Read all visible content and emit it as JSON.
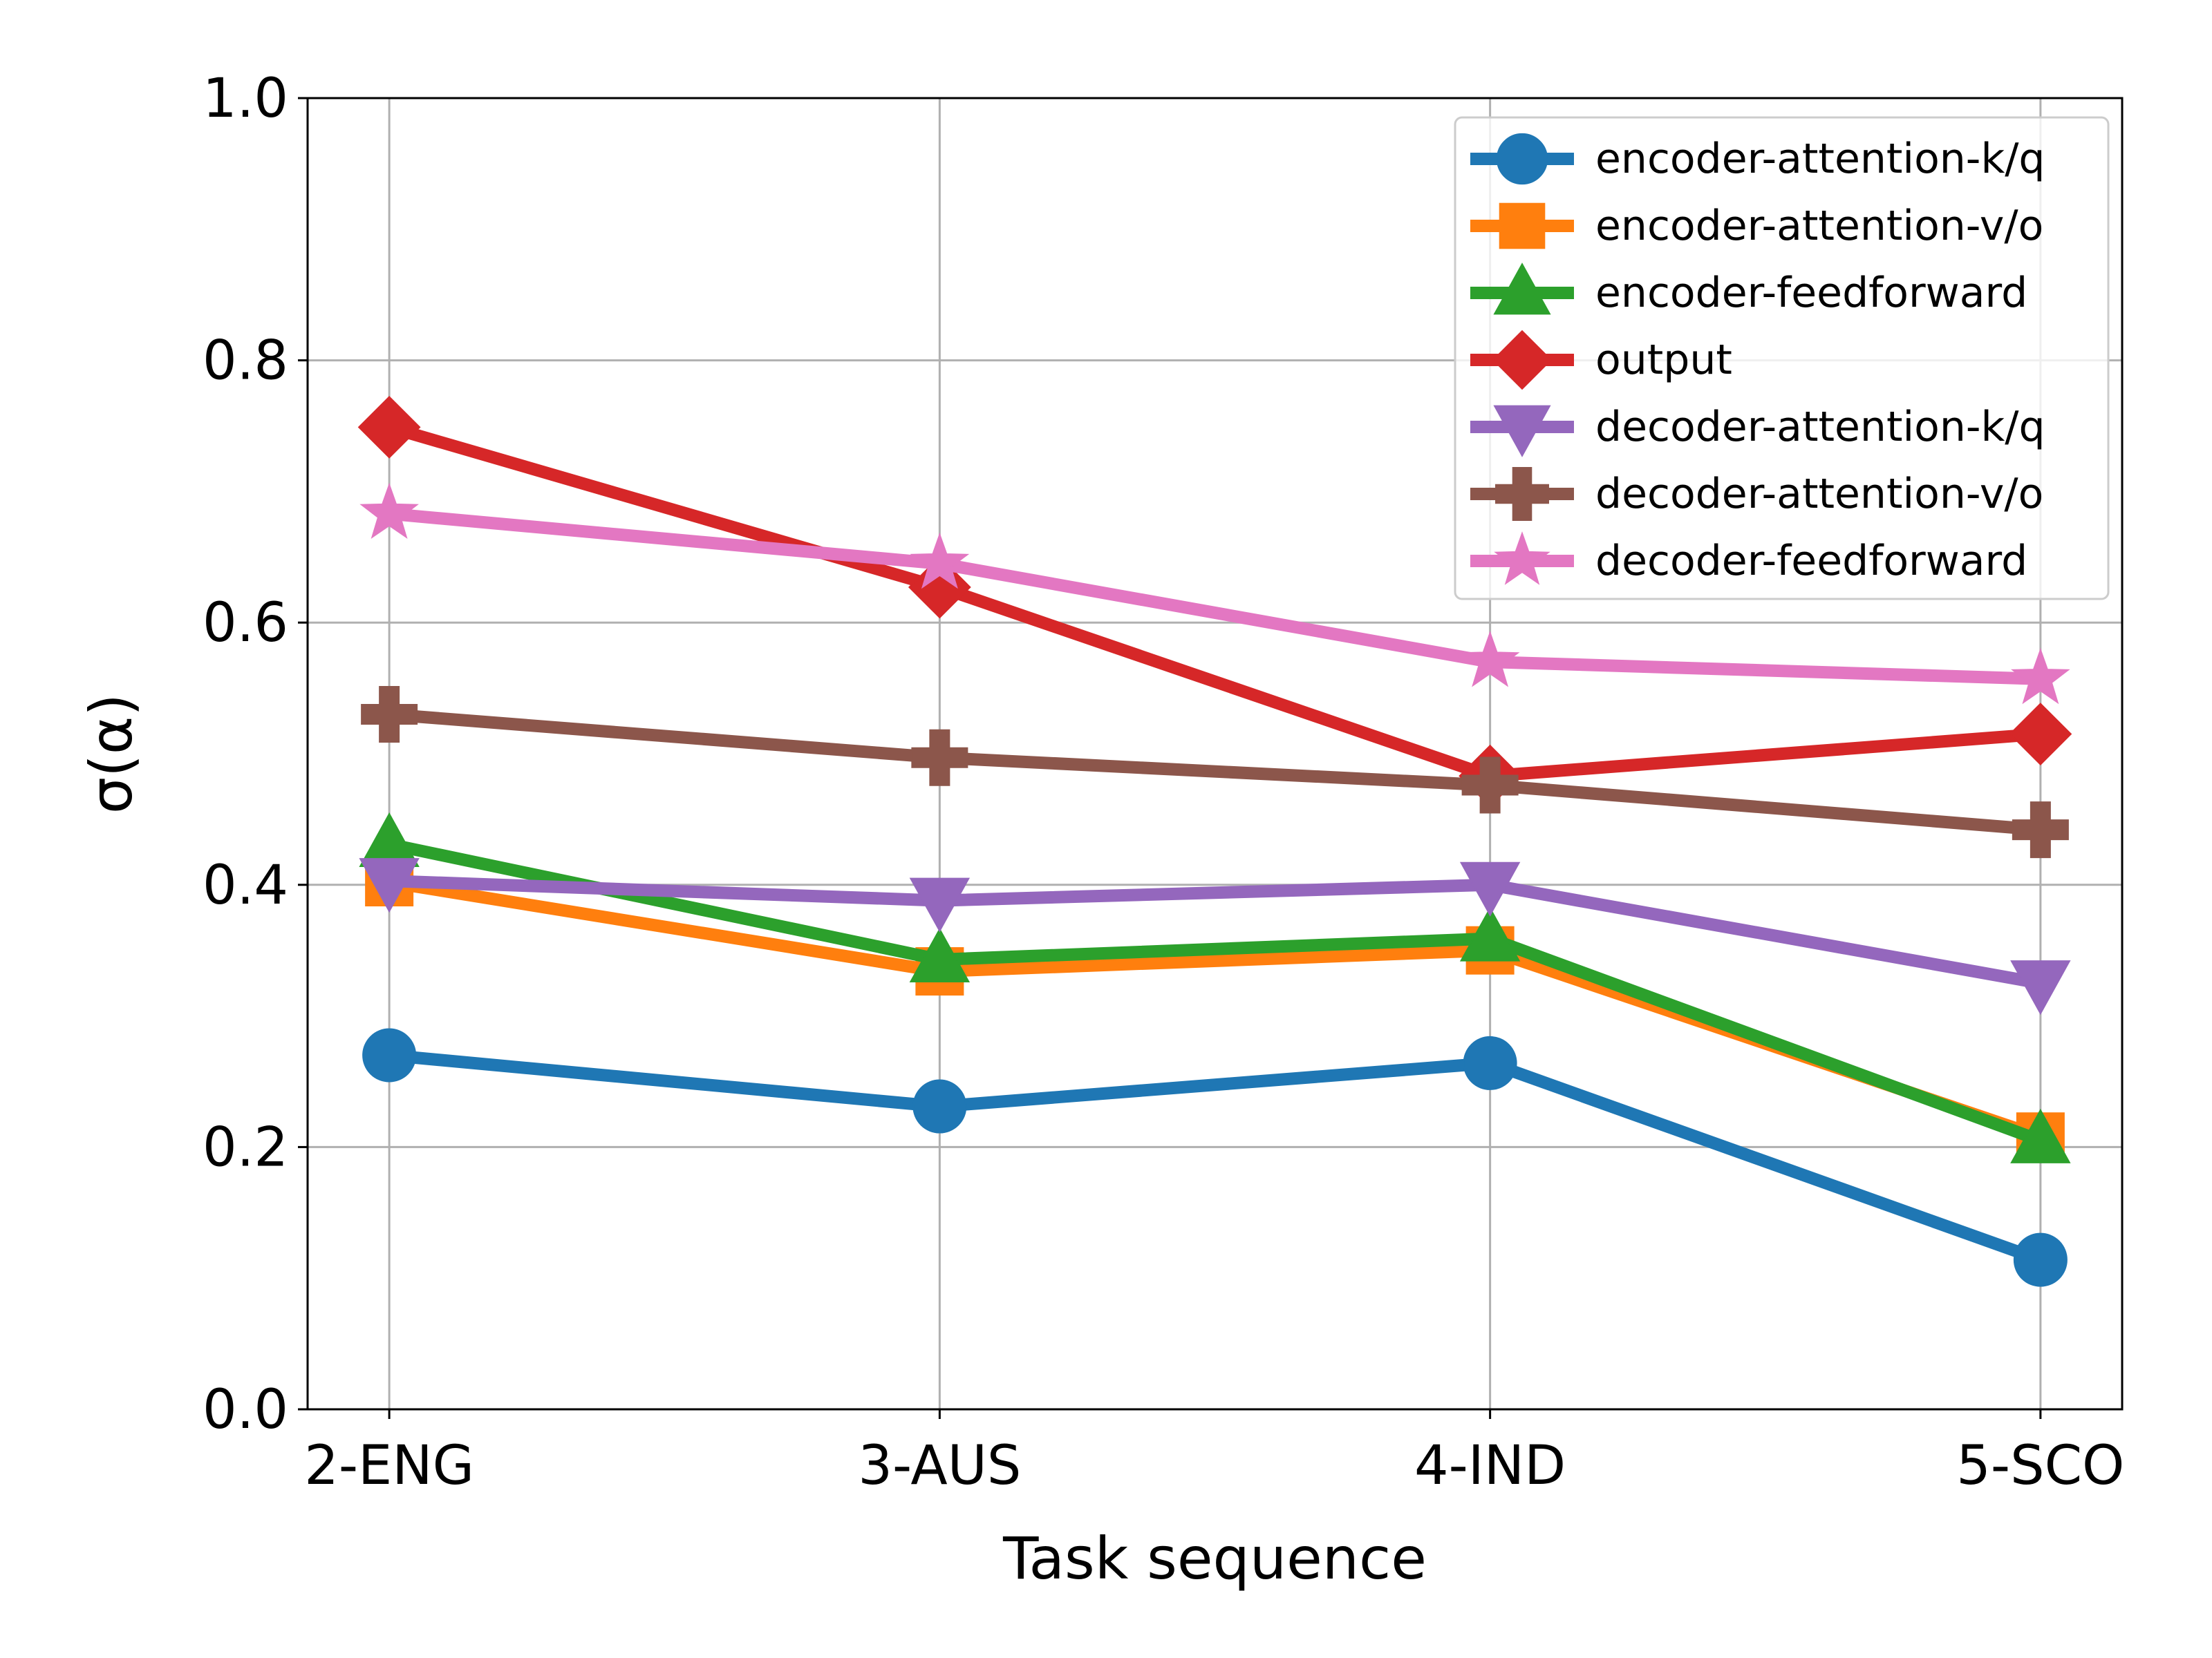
{
  "chart_data": {
    "type": "line",
    "title": "",
    "xlabel": "Task sequence",
    "ylabel": "σ(α)",
    "categories": [
      "2-ENG",
      "3-AUS",
      "4-IND",
      "5-SCO"
    ],
    "ylim": [
      0.0,
      1.0
    ],
    "yticks": [
      "0.0",
      "0.2",
      "0.4",
      "0.6",
      "0.8",
      "1.0"
    ],
    "grid": true,
    "legend_position": "top-right",
    "series": [
      {
        "name": "encoder-attention-k/q",
        "marker": "circle",
        "color": "#1f77b4",
        "values": [
          0.27,
          0.231,
          0.264,
          0.114
        ]
      },
      {
        "name": "encoder-attention-v/o",
        "marker": "square",
        "color": "#ff7f0e",
        "values": [
          0.402,
          0.334,
          0.35,
          0.208
        ]
      },
      {
        "name": "encoder-feedforward",
        "marker": "triangle-up",
        "color": "#2ca02c",
        "values": [
          0.431,
          0.343,
          0.359,
          0.205
        ]
      },
      {
        "name": "output",
        "marker": "diamond",
        "color": "#d62728",
        "values": [
          0.749,
          0.627,
          0.483,
          0.515
        ]
      },
      {
        "name": "decoder-attention-k/q",
        "marker": "triangle-down",
        "color": "#9467bd",
        "values": [
          0.403,
          0.388,
          0.4,
          0.325
        ]
      },
      {
        "name": "decoder-attention-v/o",
        "marker": "plus",
        "color": "#8c564b",
        "values": [
          0.53,
          0.497,
          0.476,
          0.442
        ]
      },
      {
        "name": "decoder-feedforward",
        "marker": "star",
        "color": "#e377c2",
        "values": [
          0.683,
          0.645,
          0.57,
          0.557
        ]
      }
    ]
  }
}
